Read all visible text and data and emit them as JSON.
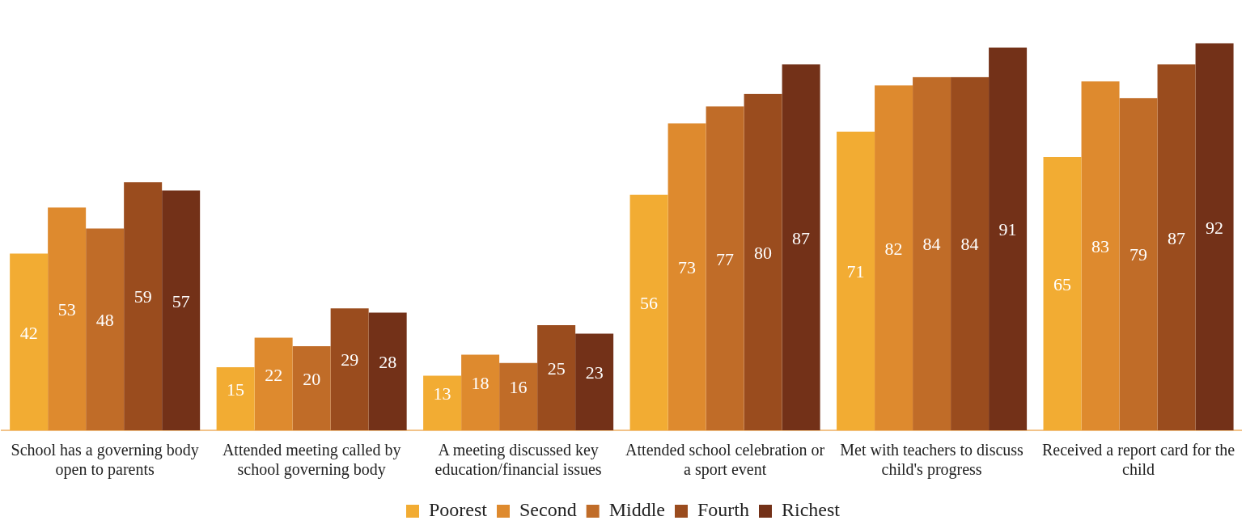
{
  "chart_data": {
    "type": "bar",
    "categories": [
      "School has a governing body open to parents",
      "Attended meeting called by school governing body",
      "A meeting discussed key education/financial issues",
      "Attended school celebration or a sport event",
      "Met with teachers to discuss child's progress",
      "Received a report card for the child"
    ],
    "series": [
      {
        "name": "Poorest",
        "color": "#f2ac33",
        "values": [
          42,
          15,
          13,
          56,
          71,
          65
        ]
      },
      {
        "name": "Second",
        "color": "#de8a2e",
        "values": [
          53,
          22,
          18,
          73,
          82,
          83
        ]
      },
      {
        "name": "Middle",
        "color": "#c06c28",
        "values": [
          48,
          20,
          16,
          77,
          84,
          79
        ]
      },
      {
        "name": "Fourth",
        "color": "#9a4c1e",
        "values": [
          59,
          29,
          25,
          80,
          84,
          87
        ]
      },
      {
        "name": "Richest",
        "color": "#733118",
        "values": [
          57,
          28,
          23,
          87,
          91,
          92
        ]
      }
    ],
    "data_labels": true,
    "grid": false,
    "legend": "bottom",
    "tick_labels": "x"
  }
}
